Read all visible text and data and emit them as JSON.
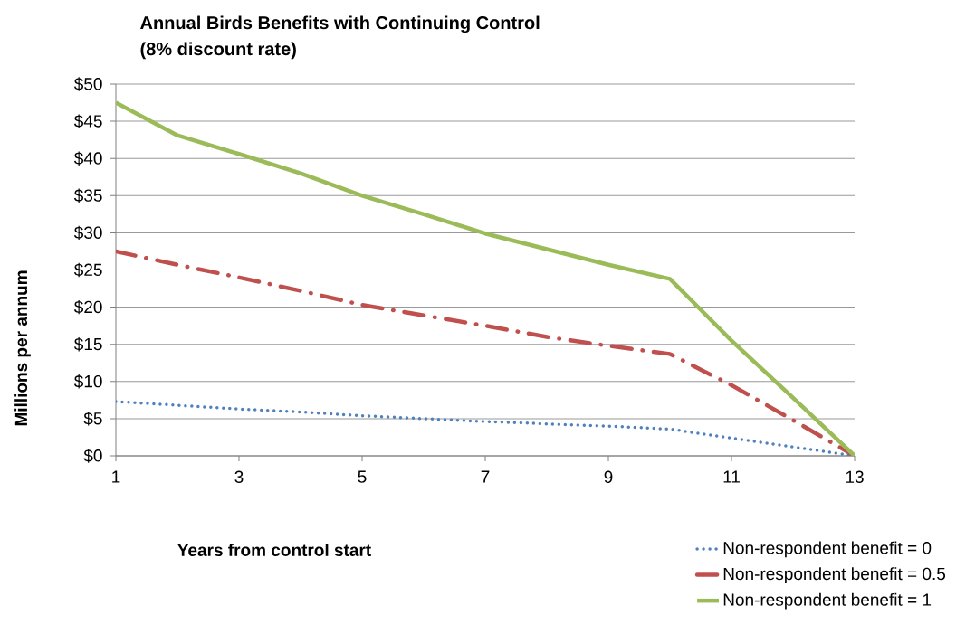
{
  "chart_data": {
    "type": "line",
    "title": "Annual Birds Benefits with Continuing Control",
    "subtitle": "(8% discount rate)",
    "xlabel": "Years from control start",
    "ylabel": "Millions per annum",
    "x": [
      1,
      2,
      3,
      4,
      5,
      6,
      7,
      8,
      9,
      10,
      11,
      12,
      13
    ],
    "series": [
      {
        "name": "Non-respondent benefit = 0",
        "color": "#4f81bd",
        "line_style": "dotted",
        "values": [
          7.3,
          6.8,
          6.3,
          5.9,
          5.4,
          5.0,
          4.6,
          4.3,
          4.0,
          3.6,
          2.4,
          1.2,
          0
        ]
      },
      {
        "name": "Non-respondent benefit = 0.5",
        "color": "#c0504d",
        "line_style": "dashed",
        "values": [
          27.5,
          25.7,
          24.0,
          22.2,
          20.3,
          18.9,
          17.5,
          16.0,
          14.8,
          13.7,
          9.5,
          4.8,
          0
        ]
      },
      {
        "name": "Non-respondent benefit = 1",
        "color": "#9bbb59",
        "line_style": "solid",
        "values": [
          47.5,
          43.1,
          40.6,
          38.0,
          35.0,
          32.5,
          29.9,
          27.8,
          25.7,
          23.8,
          15.5,
          7.8,
          0
        ]
      }
    ],
    "xlim": [
      1,
      13
    ],
    "xticks": [
      1,
      3,
      5,
      7,
      9,
      11,
      13
    ],
    "ylim": [
      0,
      50
    ],
    "yticks": [
      {
        "value": 0,
        "label": "$0"
      },
      {
        "value": 5,
        "label": "$5"
      },
      {
        "value": 10,
        "label": "$10"
      },
      {
        "value": 15,
        "label": "$15"
      },
      {
        "value": 20,
        "label": "$20"
      },
      {
        "value": 25,
        "label": "$25"
      },
      {
        "value": 30,
        "label": "$30"
      },
      {
        "value": 35,
        "label": "$35"
      },
      {
        "value": 40,
        "label": "$40"
      },
      {
        "value": 45,
        "label": "$45"
      },
      {
        "value": 50,
        "label": "$50"
      }
    ],
    "grid": "y",
    "legend": "bottom right",
    "marker": "none"
  }
}
